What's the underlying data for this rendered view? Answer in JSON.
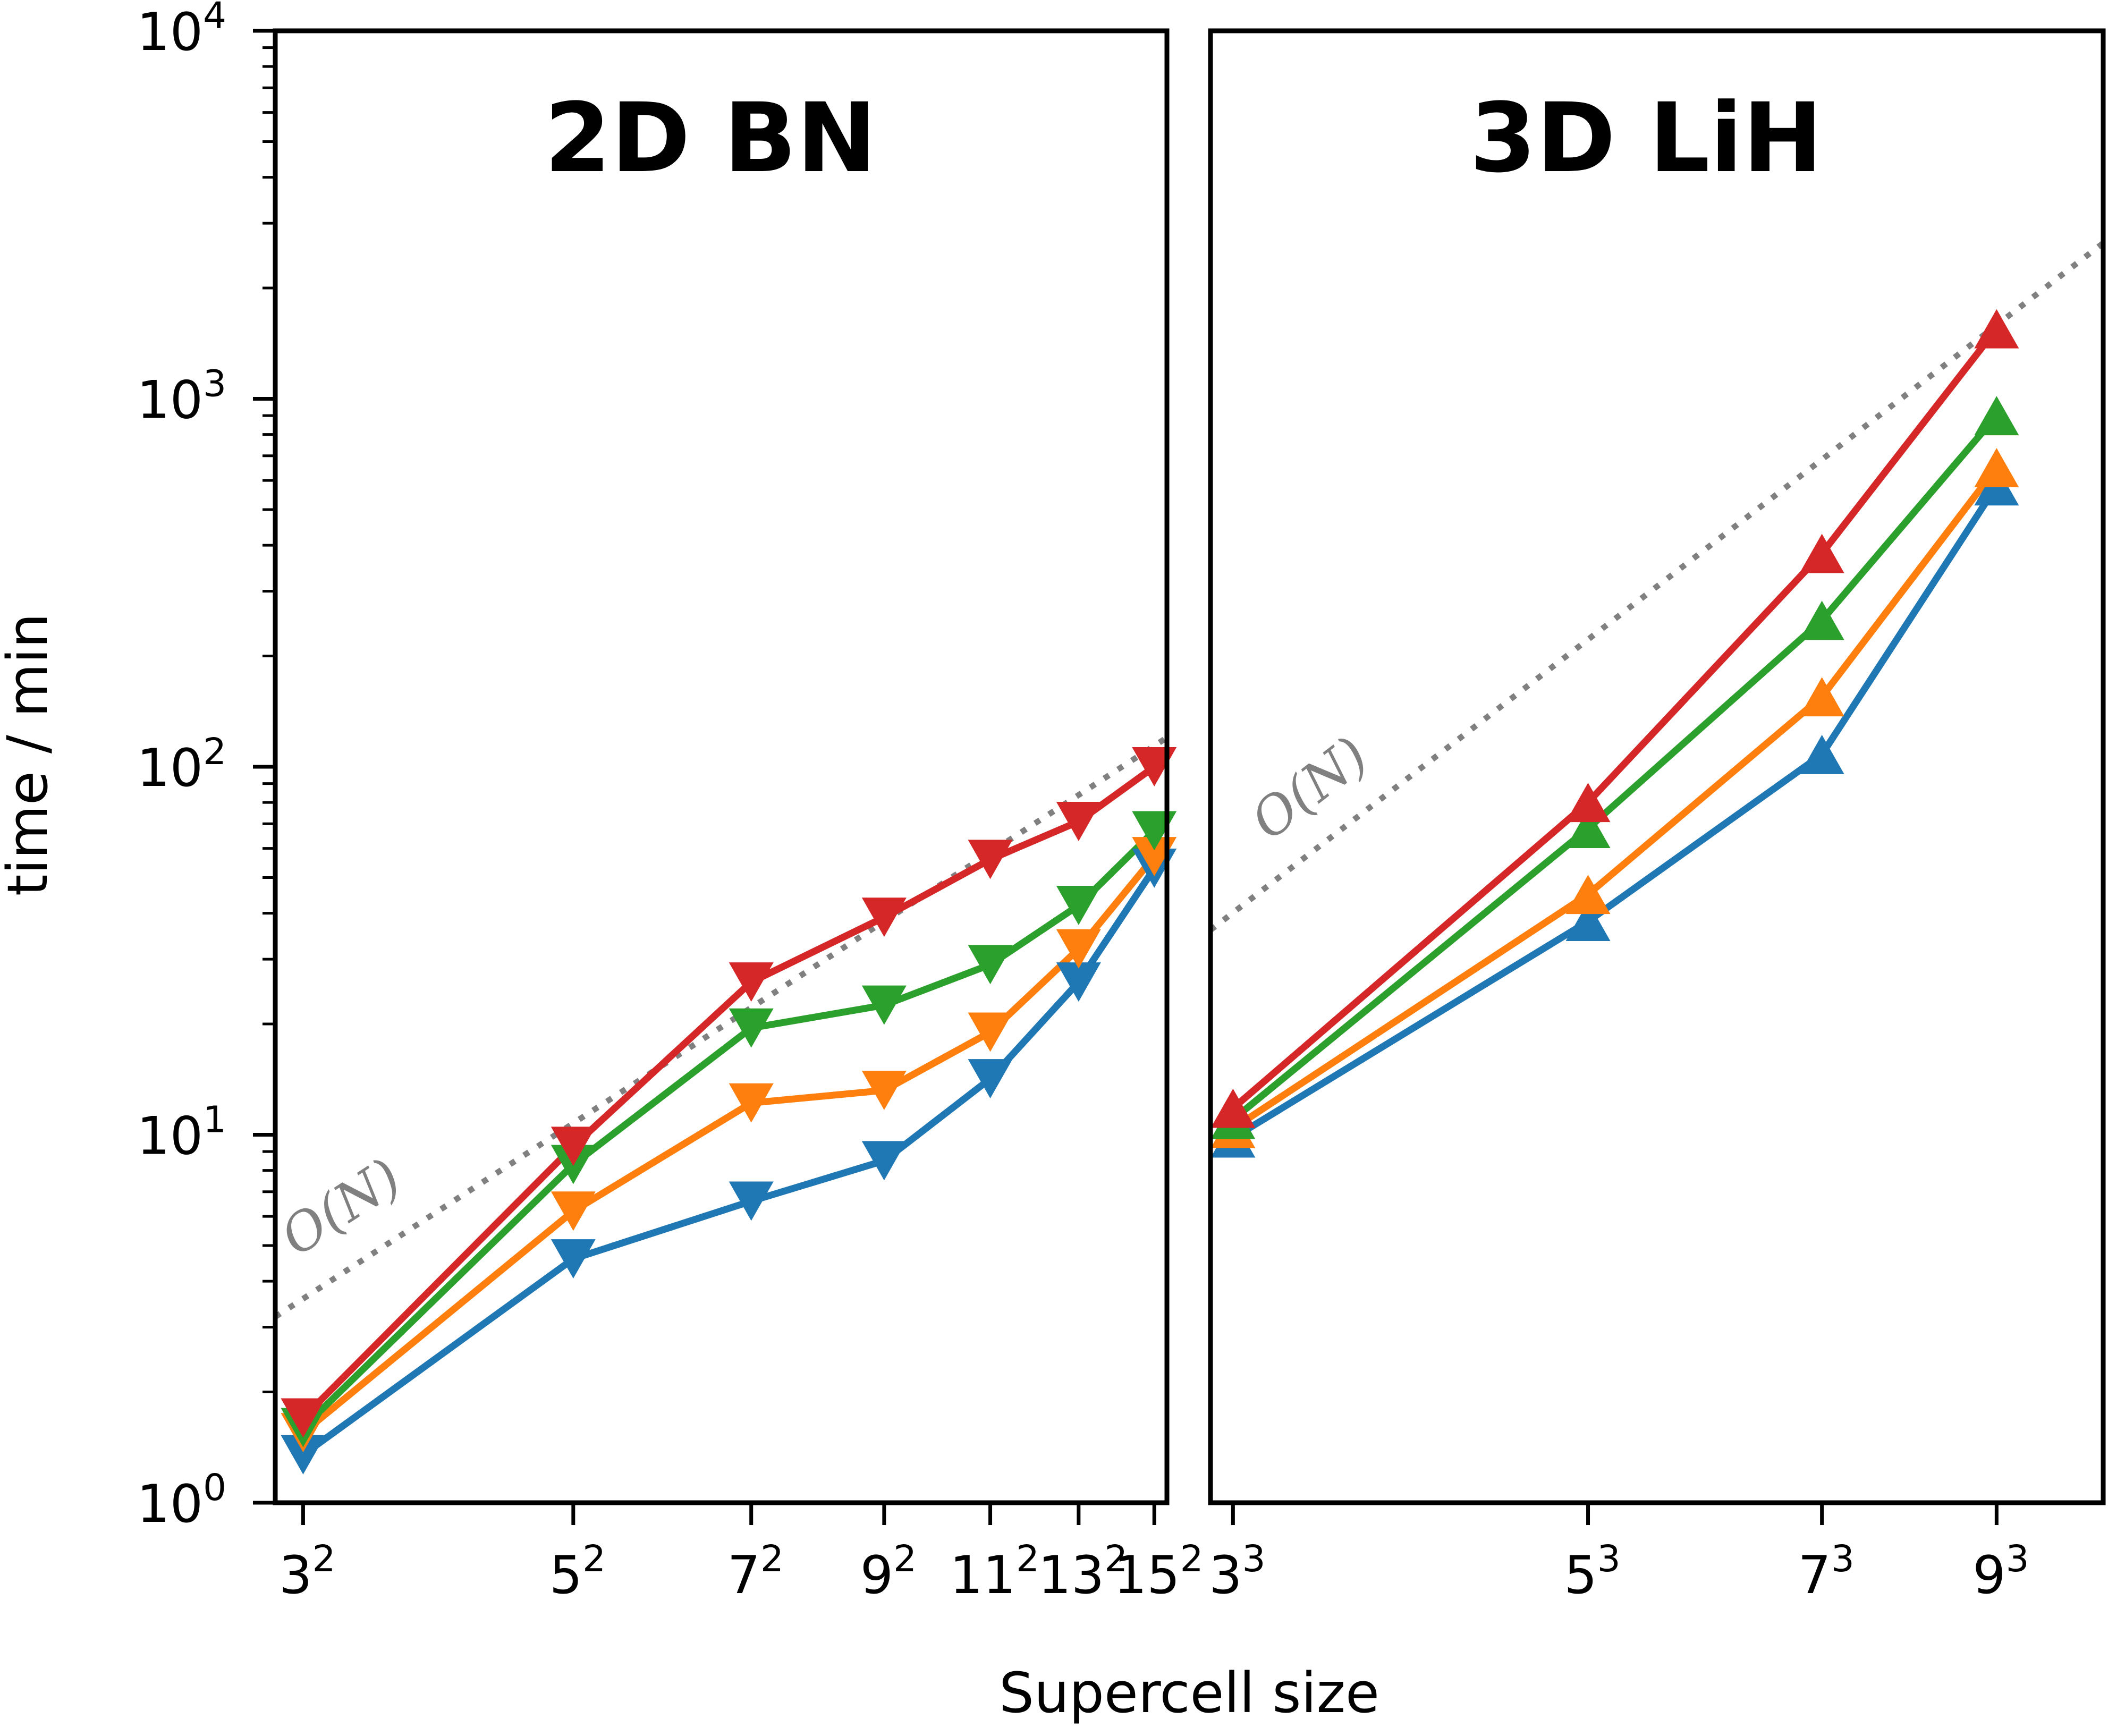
{
  "figure": {
    "ylabel": "time / min",
    "xlabel": "Supercell size"
  },
  "chart_data": [
    {
      "type": "line",
      "title": "2D BN",
      "x_scale": "log",
      "y_scale": "log",
      "ylim": [
        1,
        10000
      ],
      "xlim": [
        8.1,
        236
      ],
      "x": [
        9,
        25,
        49,
        81,
        121,
        169,
        225
      ],
      "x_tick_labels": [
        {
          "base": "3",
          "exp": "2"
        },
        {
          "base": "5",
          "exp": "2"
        },
        {
          "base": "7",
          "exp": "2"
        },
        {
          "base": "9",
          "exp": "2"
        },
        {
          "base": "11",
          "exp": "2"
        },
        {
          "base": "13",
          "exp": "2"
        },
        {
          "base": "15",
          "exp": "2"
        }
      ],
      "y_tick_labels": [
        {
          "base": "10",
          "exp": "0",
          "value": 1
        },
        {
          "base": "10",
          "exp": "1",
          "value": 10
        },
        {
          "base": "10",
          "exp": "2",
          "value": 100
        },
        {
          "base": "10",
          "exp": "3",
          "value": 1000
        },
        {
          "base": "10",
          "exp": "4",
          "value": 10000
        }
      ],
      "marker": "triangle-down",
      "series": [
        {
          "color": "#1f77b4",
          "values": [
            1.35,
            4.6,
            6.6,
            8.5,
            14.2,
            26,
            53
          ]
        },
        {
          "color": "#ff7f0e",
          "values": [
            1.55,
            6.2,
            12.2,
            13.2,
            19,
            32,
            57
          ]
        },
        {
          "color": "#2ca02c",
          "values": [
            1.6,
            8.3,
            19.5,
            22.5,
            29,
            42,
            67
          ]
        },
        {
          "color": "#d62728",
          "values": [
            1.7,
            9.3,
            26,
            39,
            56,
            71,
            100
          ]
        }
      ],
      "reference": {
        "label": "O(N)",
        "color": "#808080",
        "style": "dotted",
        "x": [
          8.1,
          236
        ],
        "y": [
          3.2,
          120
        ]
      }
    },
    {
      "type": "line",
      "title": "3D LiH",
      "x_scale": "log",
      "y_scale": "log",
      "ylim": [
        1,
        10000
      ],
      "xlim": [
        24.5,
        1155
      ],
      "x": [
        27,
        125,
        343,
        729
      ],
      "x_tick_labels": [
        {
          "base": "3",
          "exp": "3"
        },
        {
          "base": "5",
          "exp": "3"
        },
        {
          "base": "7",
          "exp": "3"
        },
        {
          "base": "9",
          "exp": "3"
        }
      ],
      "marker": "triangle-up",
      "series": [
        {
          "color": "#1f77b4",
          "values": [
            9.8,
            38,
            108,
            580
          ]
        },
        {
          "color": "#ff7f0e",
          "values": [
            10.4,
            45,
            155,
            650
          ]
        },
        {
          "color": "#2ca02c",
          "values": [
            11.0,
            68,
            250,
            900
          ]
        },
        {
          "color": "#d62728",
          "values": [
            11.8,
            80,
            380,
            1550
          ]
        }
      ],
      "reference": {
        "label": "O(N)",
        "color": "#808080",
        "style": "dotted",
        "x": [
          24.5,
          1155
        ],
        "y": [
          36,
          2650
        ]
      }
    }
  ]
}
